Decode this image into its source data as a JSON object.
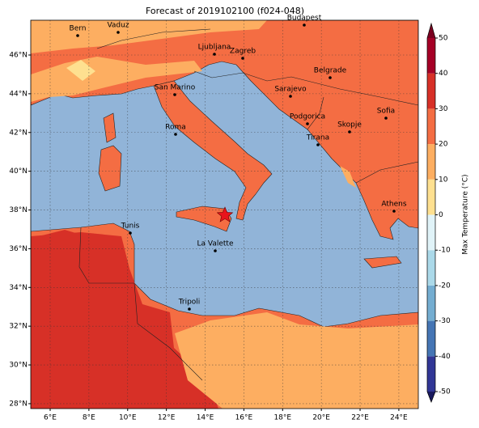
{
  "title": "Forecast of 2019102100 (f024-048)",
  "map": {
    "lon_ticks": [
      {
        "value": 6,
        "label": "6°E"
      },
      {
        "value": 8,
        "label": "8°E"
      },
      {
        "value": 10,
        "label": "10°E"
      },
      {
        "value": 12,
        "label": "12°E"
      },
      {
        "value": 14,
        "label": "14°E"
      },
      {
        "value": 16,
        "label": "16°E"
      },
      {
        "value": 18,
        "label": "18°E"
      },
      {
        "value": 20,
        "label": "20°E"
      },
      {
        "value": 22,
        "label": "22°E"
      },
      {
        "value": 24,
        "label": "24°E"
      }
    ],
    "lat_ticks": [
      {
        "value": 28,
        "label": "28°N"
      },
      {
        "value": 30,
        "label": "30°N"
      },
      {
        "value": 32,
        "label": "32°N"
      },
      {
        "value": 34,
        "label": "34°N"
      },
      {
        "value": 36,
        "label": "36°N"
      },
      {
        "value": 38,
        "label": "38°N"
      },
      {
        "value": 40,
        "label": "40°N"
      },
      {
        "value": 42,
        "label": "42°N"
      },
      {
        "value": 44,
        "label": "44°N"
      },
      {
        "value": 46,
        "label": "46°N"
      }
    ],
    "cities": [
      "Bern",
      "Vaduz",
      "Budapest",
      "Ljubljana",
      "Zagreb",
      "Belgrade",
      "San Marino",
      "Sarajevo",
      "Sofia",
      "Podgorica",
      "Skopje",
      "Roma",
      "Tirana",
      "Athens",
      "Tunis",
      "La Valette",
      "Tripoli"
    ]
  },
  "colorbar": {
    "label": "Max Temperature (°C)",
    "ticks": [
      -50,
      -40,
      -30,
      -20,
      -10,
      0,
      10,
      20,
      30,
      40,
      50
    ],
    "colors": [
      "#313695",
      "#4575b4",
      "#74add1",
      "#abd9e9",
      "#e0f3f8",
      "#fee090",
      "#fdae61",
      "#f46d43",
      "#d73027",
      "#a50026"
    ],
    "under_color": "#1a1a5e",
    "over_color": "#7a0020"
  }
}
